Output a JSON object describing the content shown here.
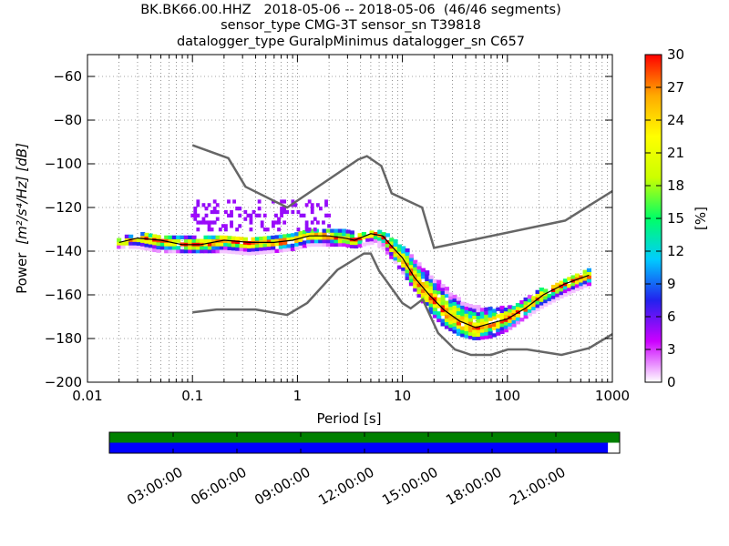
{
  "chart_data": {
    "type": "heatmap",
    "title": [
      "BK.BK66.00.HHZ   2018-05-06 -- 2018-05-06  (46/46 segments)",
      "sensor_type CMG-3T sensor_sn T39818",
      "datalogger_type GuralpMinimus datalogger_sn C657"
    ],
    "xlabel": "Period [s]",
    "ylabel_prefix": "Power",
    "ylabel_units": "[m²/s⁴/Hz] [dB]",
    "x_scale": "log",
    "xlim": [
      0.01,
      1000
    ],
    "ylim": [
      -200,
      -50
    ],
    "xticks": [
      {
        "value": 0.01,
        "label": "0.01"
      },
      {
        "value": 0.1,
        "label": "0.1"
      },
      {
        "value": 1,
        "label": "1"
      },
      {
        "value": 10,
        "label": "10"
      },
      {
        "value": 100,
        "label": "100"
      },
      {
        "value": 1000,
        "label": "1000"
      }
    ],
    "yticks": [
      -60,
      -80,
      -100,
      -120,
      -140,
      -160,
      -180,
      -200
    ],
    "grid": "dotted, vertical at each period decade subdivision",
    "colorbar": {
      "label": "[%]",
      "range": [
        0,
        30
      ],
      "ticks": [
        0,
        3,
        6,
        9,
        12,
        15,
        18,
        21,
        24,
        27,
        30
      ],
      "colormap": [
        "#ffffff",
        "#cc00ff",
        "#2222ee",
        "#00ccff",
        "#00ff66",
        "#ccff00",
        "#ffff00",
        "#ffaa00",
        "#ff0000"
      ]
    },
    "nhnm": {
      "name": "New High Noise Model",
      "x": [
        0.1,
        0.22,
        0.32,
        0.8,
        3.8,
        4.6,
        6.3,
        7.9,
        15.4,
        20,
        354.8,
        1000
      ],
      "y": [
        -91.5,
        -97.4,
        -110.5,
        -120,
        -98,
        -96.5,
        -101,
        -113.5,
        -120,
        -138.5,
        -126,
        -112.5
      ]
    },
    "nlnm": {
      "name": "New Low Noise Model",
      "x": [
        0.1,
        0.17,
        0.4,
        0.8,
        1.24,
        2.4,
        4.3,
        5,
        6,
        10,
        12,
        15.6,
        21.9,
        31.6,
        45,
        70,
        101,
        154,
        328,
        600,
        1000
      ],
      "y": [
        -168,
        -166.7,
        -166.7,
        -169.2,
        -163.7,
        -148.6,
        -141.1,
        -141.1,
        -149,
        -163.8,
        -166.2,
        -162.1,
        -177.5,
        -185,
        -187.5,
        -187.5,
        -185,
        -185,
        -187.5,
        -184.4,
        -178
      ]
    },
    "mode_line": {
      "x": [
        0.02,
        0.03,
        0.05,
        0.08,
        0.12,
        0.2,
        0.35,
        0.6,
        0.9,
        1.3,
        2,
        2.8,
        3.5,
        5,
        6.5,
        8,
        10,
        13,
        18,
        25,
        35,
        50,
        70,
        100,
        150,
        220,
        350,
        600
      ],
      "y": [
        -136,
        -134,
        -135,
        -137,
        -137,
        -135,
        -136,
        -136,
        -135,
        -133,
        -133,
        -134,
        -135,
        -132,
        -133,
        -138,
        -143,
        -152,
        -160,
        -167,
        -172,
        -175,
        -173,
        -171,
        -166,
        -160,
        -155,
        -151
      ]
    },
    "density_bins": [
      {
        "x": 0.02,
        "lo": -138,
        "hi": -134
      },
      {
        "x": 0.03,
        "lo": -138,
        "hi": -132
      },
      {
        "x": 0.05,
        "lo": -140,
        "hi": -132
      },
      {
        "x": 0.08,
        "lo": -140,
        "hi": -133
      },
      {
        "x": 0.12,
        "lo": -140,
        "hi": -132
      },
      {
        "x": 0.2,
        "lo": -140,
        "hi": -133
      },
      {
        "x": 0.35,
        "lo": -141,
        "hi": -133
      },
      {
        "x": 0.6,
        "lo": -140,
        "hi": -133
      },
      {
        "x": 0.9,
        "lo": -139,
        "hi": -131
      },
      {
        "x": 1.3,
        "lo": -137,
        "hi": -130
      },
      {
        "x": 2,
        "lo": -137,
        "hi": -130
      },
      {
        "x": 2.8,
        "lo": -137,
        "hi": -130
      },
      {
        "x": 3.5,
        "lo": -138,
        "hi": -131
      },
      {
        "x": 5,
        "lo": -136,
        "hi": -131
      },
      {
        "x": 6.5,
        "lo": -138,
        "hi": -131
      },
      {
        "x": 8,
        "lo": -143,
        "hi": -134
      },
      {
        "x": 10,
        "lo": -149,
        "hi": -137
      },
      {
        "x": 13,
        "lo": -157,
        "hi": -143
      },
      {
        "x": 18,
        "lo": -167,
        "hi": -150
      },
      {
        "x": 25,
        "lo": -174,
        "hi": -156
      },
      {
        "x": 35,
        "lo": -178,
        "hi": -162
      },
      {
        "x": 50,
        "lo": -180,
        "hi": -165
      },
      {
        "x": 70,
        "lo": -179,
        "hi": -166
      },
      {
        "x": 100,
        "lo": -176,
        "hi": -165
      },
      {
        "x": 150,
        "lo": -170,
        "hi": -162
      },
      {
        "x": 220,
        "lo": -165,
        "hi": -157
      },
      {
        "x": 350,
        "lo": -160,
        "hi": -153
      },
      {
        "x": 600,
        "lo": -155,
        "hi": -148
      }
    ],
    "sparse_region": {
      "x_range": [
        0.1,
        2
      ],
      "y_range": [
        -130,
        -117
      ]
    },
    "timeline": {
      "ticks": [
        "03:00:00",
        "06:00:00",
        "09:00:00",
        "12:00:00",
        "15:00:00",
        "18:00:00",
        "21:00:00"
      ],
      "top_bar_color": "#008000",
      "bottom_bar_color": "#0000ff",
      "bottom_bar_fraction": 0.977
    }
  }
}
